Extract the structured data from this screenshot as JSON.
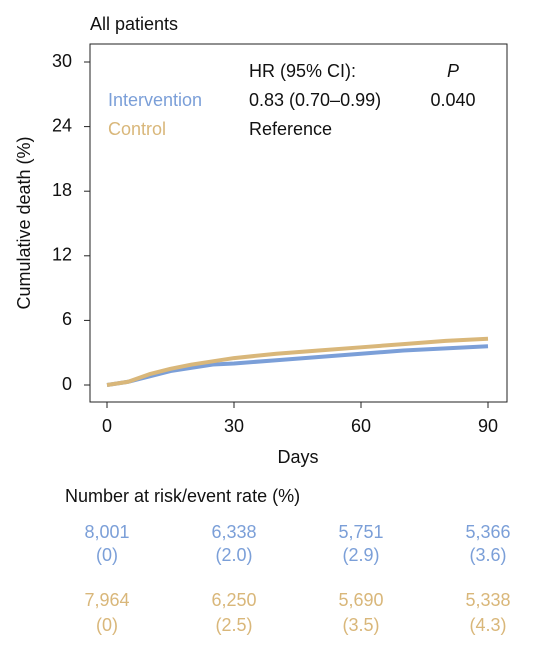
{
  "chart_data": {
    "type": "line",
    "title": "All patients",
    "x_label": "Days",
    "y_label": "Cumulative death (%)",
    "x": [
      0,
      5,
      10,
      15,
      20,
      25,
      30,
      40,
      50,
      60,
      70,
      80,
      90
    ],
    "series": [
      {
        "name": "Intervention",
        "color": "#7b9fd8",
        "values": [
          0,
          0.3,
          0.8,
          1.3,
          1.6,
          1.9,
          2.0,
          2.3,
          2.6,
          2.9,
          3.2,
          3.4,
          3.6
        ]
      },
      {
        "name": "Control",
        "color": "#d9b77a",
        "values": [
          0,
          0.3,
          1.0,
          1.5,
          1.9,
          2.2,
          2.5,
          2.9,
          3.2,
          3.5,
          3.8,
          4.1,
          4.3
        ]
      }
    ],
    "xlim": [
      0,
      90
    ],
    "xticks": [
      0,
      30,
      60,
      90
    ],
    "ylim": [
      0,
      30
    ],
    "yticks": [
      0,
      6,
      12,
      18,
      24,
      30
    ],
    "legend": "upper left",
    "annotations": {
      "hr_header": "HR (95% CI):",
      "p_header": "P",
      "hr_values": [
        "0.83 (0.70–0.99)",
        "Reference"
      ],
      "p_values": [
        "0.040"
      ]
    },
    "risk_table": {
      "title": "Number at risk/event rate (%)",
      "rows": [
        {
          "counts": [
            "8,001",
            "6,338",
            "5,751",
            "5,366"
          ],
          "rates": [
            "(0)",
            "(2.0)",
            "(2.9)",
            "(3.6)"
          ]
        },
        {
          "counts": [
            "7,964",
            "6,250",
            "5,690",
            "5,338"
          ],
          "rates": [
            "(0)",
            "(2.5)",
            "(3.5)",
            "(4.3)"
          ]
        }
      ]
    }
  }
}
